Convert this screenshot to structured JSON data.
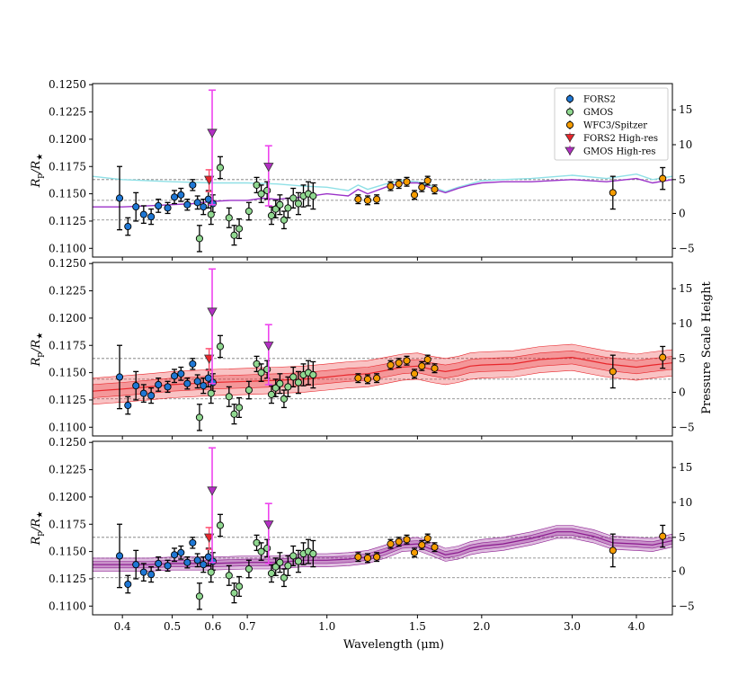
{
  "chart_data": {
    "type": "scatter",
    "x_label": "Wavelength (μm)",
    "x_scale": "log",
    "x_range": [
      0.35,
      4.7
    ],
    "x_ticks": [
      {
        "value": 0.4,
        "label": "0.4"
      },
      {
        "value": 0.5,
        "label": "0.5"
      },
      {
        "value": 0.6,
        "label": "0.6"
      },
      {
        "value": 0.7,
        "label": "0.7"
      },
      {
        "value": 1.0,
        "label": "1.0"
      },
      {
        "value": 1.5,
        "label": "1.5"
      },
      {
        "value": 2.0,
        "label": "2.0"
      },
      {
        "value": 3.0,
        "label": "3.0"
      },
      {
        "value": 4.0,
        "label": "4.0"
      }
    ],
    "y_label": "R_p/R_★",
    "y_range": [
      0.1092,
      0.1251
    ],
    "y_ticks": [
      "0.1100",
      "0.1125",
      "0.1150",
      "0.1175",
      "0.1200",
      "0.1225",
      "0.1250"
    ],
    "y2_label": "Pressure Scale Height",
    "y2_ticks": [
      {
        "value": -5,
        "label": "−5",
        "y": 0.11
      },
      {
        "value": 0,
        "label": "0",
        "y": 0.1132
      },
      {
        "value": 5,
        "label": "5",
        "y": 0.1163
      },
      {
        "value": 10,
        "label": "10",
        "y": 0.1195
      },
      {
        "value": 15,
        "label": "15",
        "y": 0.1227
      }
    ],
    "reference_lines": [
      0.1163,
      0.1144,
      0.1126
    ],
    "legend": {
      "position": "top-right",
      "entries": [
        {
          "label": "FORS2",
          "color": "#1f77d4",
          "marker": "circle"
        },
        {
          "label": "GMOS",
          "color": "#90d890",
          "marker": "circle"
        },
        {
          "label": "WFC3/Spitzer",
          "color": "#f59c00",
          "marker": "circle"
        },
        {
          "label": "FORS2 High-res",
          "color": "#e8262b",
          "marker": "triangle-down"
        },
        {
          "label": "GMOS High-res",
          "color": "#b32fc4",
          "marker": "triangle-down"
        }
      ]
    },
    "series": [
      {
        "name": "FORS2",
        "color": "#1f77d4",
        "points": [
          {
            "x": 0.395,
            "y": 0.1146,
            "err": 0.0029
          },
          {
            "x": 0.41,
            "y": 0.112,
            "err": 0.0008
          },
          {
            "x": 0.425,
            "y": 0.1138,
            "err": 0.0013
          },
          {
            "x": 0.44,
            "y": 0.1131,
            "err": 0.0008
          },
          {
            "x": 0.455,
            "y": 0.1129,
            "err": 0.0007
          },
          {
            "x": 0.47,
            "y": 0.1139,
            "err": 0.0006
          },
          {
            "x": 0.49,
            "y": 0.1137,
            "err": 0.0005
          },
          {
            "x": 0.505,
            "y": 0.1147,
            "err": 0.0006
          },
          {
            "x": 0.52,
            "y": 0.1149,
            "err": 0.0006
          },
          {
            "x": 0.535,
            "y": 0.114,
            "err": 0.0005
          },
          {
            "x": 0.548,
            "y": 0.1158,
            "err": 0.0005
          },
          {
            "x": 0.56,
            "y": 0.1142,
            "err": 0.0006
          },
          {
            "x": 0.575,
            "y": 0.1138,
            "err": 0.0007
          },
          {
            "x": 0.588,
            "y": 0.1145,
            "err": 0.0008
          },
          {
            "x": 0.6,
            "y": 0.1141,
            "err": 0.0008
          }
        ]
      },
      {
        "name": "GMOS",
        "color": "#90d890",
        "points": [
          {
            "x": 0.565,
            "y": 0.1109,
            "err": 0.0012
          },
          {
            "x": 0.595,
            "y": 0.1131,
            "err": 0.0009
          },
          {
            "x": 0.62,
            "y": 0.1174,
            "err": 0.001
          },
          {
            "x": 0.645,
            "y": 0.1128,
            "err": 0.0009
          },
          {
            "x": 0.66,
            "y": 0.1112,
            "err": 0.0009
          },
          {
            "x": 0.675,
            "y": 0.1118,
            "err": 0.0009
          },
          {
            "x": 0.705,
            "y": 0.1134,
            "err": 0.0008
          },
          {
            "x": 0.73,
            "y": 0.1158,
            "err": 0.0007
          },
          {
            "x": 0.745,
            "y": 0.115,
            "err": 0.0008
          },
          {
            "x": 0.765,
            "y": 0.1153,
            "err": 0.0008
          },
          {
            "x": 0.78,
            "y": 0.113,
            "err": 0.0008
          },
          {
            "x": 0.795,
            "y": 0.1136,
            "err": 0.0008
          },
          {
            "x": 0.81,
            "y": 0.114,
            "err": 0.0009
          },
          {
            "x": 0.825,
            "y": 0.1126,
            "err": 0.0008
          },
          {
            "x": 0.84,
            "y": 0.1137,
            "err": 0.0009
          },
          {
            "x": 0.86,
            "y": 0.1146,
            "err": 0.0009
          },
          {
            "x": 0.88,
            "y": 0.1141,
            "err": 0.001
          },
          {
            "x": 0.9,
            "y": 0.1148,
            "err": 0.001
          },
          {
            "x": 0.92,
            "y": 0.115,
            "err": 0.0011
          },
          {
            "x": 0.94,
            "y": 0.1148,
            "err": 0.0012
          }
        ]
      },
      {
        "name": "WFC3/Spitzer",
        "color": "#f59c00",
        "points": [
          {
            "x": 1.15,
            "y": 0.1145,
            "err": 0.0004
          },
          {
            "x": 1.2,
            "y": 0.1144,
            "err": 0.0004
          },
          {
            "x": 1.25,
            "y": 0.1145,
            "err": 0.0004
          },
          {
            "x": 1.33,
            "y": 0.1157,
            "err": 0.0004
          },
          {
            "x": 1.38,
            "y": 0.1159,
            "err": 0.0004
          },
          {
            "x": 1.43,
            "y": 0.1161,
            "err": 0.0004
          },
          {
            "x": 1.48,
            "y": 0.1149,
            "err": 0.0004
          },
          {
            "x": 1.53,
            "y": 0.1156,
            "err": 0.0004
          },
          {
            "x": 1.57,
            "y": 0.1162,
            "err": 0.0004
          },
          {
            "x": 1.62,
            "y": 0.1154,
            "err": 0.0004
          },
          {
            "x": 3.6,
            "y": 0.1151,
            "err": 0.0015
          },
          {
            "x": 4.5,
            "y": 0.1164,
            "err": 0.001
          }
        ]
      },
      {
        "name": "FORS2 High-res",
        "color": "#e8262b",
        "points": [
          {
            "x": 0.59,
            "y": 0.1162,
            "err_up": 0.001,
            "err_down": 0.001
          }
        ]
      },
      {
        "name": "GMOS High-res",
        "color": "#b32fc4",
        "points": [
          {
            "x": 0.598,
            "y": 0.1205,
            "err_up": 0.004,
            "err_down": 0.0065
          },
          {
            "x": 0.77,
            "y": 0.1174,
            "err_up": 0.002,
            "err_down": 0.0035
          }
        ]
      }
    ],
    "models": {
      "top": [
        {
          "color": "#8fe0e6",
          "points": [
            [
              0.35,
              0.1166
            ],
            [
              0.4,
              0.1163
            ],
            [
              0.5,
              0.1161
            ],
            [
              0.6,
              0.116
            ],
            [
              0.7,
              0.116
            ],
            [
              0.8,
              0.1159
            ],
            [
              0.9,
              0.1157
            ],
            [
              1.0,
              0.1156
            ],
            [
              1.1,
              0.1153
            ],
            [
              1.15,
              0.1158
            ],
            [
              1.2,
              0.1154
            ],
            [
              1.3,
              0.1159
            ],
            [
              1.4,
              0.1162
            ],
            [
              1.5,
              0.1161
            ],
            [
              1.6,
              0.1157
            ],
            [
              1.7,
              0.1152
            ],
            [
              1.8,
              0.1156
            ],
            [
              1.9,
              0.1159
            ],
            [
              2.0,
              0.1162
            ],
            [
              2.2,
              0.1163
            ],
            [
              2.5,
              0.1164
            ],
            [
              3.0,
              0.1167
            ],
            [
              3.5,
              0.1164
            ],
            [
              4.0,
              0.1168
            ],
            [
              4.3,
              0.1163
            ],
            [
              4.7,
              0.1166
            ]
          ]
        },
        {
          "color": "#9b32c8",
          "points": [
            [
              0.35,
              0.1138
            ],
            [
              0.4,
              0.1138
            ],
            [
              0.45,
              0.1139
            ],
            [
              0.5,
              0.114
            ],
            [
              0.55,
              0.1141
            ],
            [
              0.6,
              0.1143
            ],
            [
              0.65,
              0.1144
            ],
            [
              0.7,
              0.1144
            ],
            [
              0.75,
              0.1146
            ],
            [
              0.8,
              0.1145
            ],
            [
              0.9,
              0.1147
            ],
            [
              1.0,
              0.115
            ],
            [
              1.1,
              0.1148
            ],
            [
              1.15,
              0.1154
            ],
            [
              1.2,
              0.115
            ],
            [
              1.3,
              0.1156
            ],
            [
              1.4,
              0.116
            ],
            [
              1.5,
              0.116
            ],
            [
              1.6,
              0.1155
            ],
            [
              1.7,
              0.1151
            ],
            [
              1.8,
              0.1155
            ],
            [
              1.9,
              0.1158
            ],
            [
              2.0,
              0.116
            ],
            [
              2.2,
              0.1161
            ],
            [
              2.5,
              0.1161
            ],
            [
              3.0,
              0.1163
            ],
            [
              3.5,
              0.1161
            ],
            [
              4.0,
              0.1164
            ],
            [
              4.3,
              0.116
            ],
            [
              4.7,
              0.1163
            ]
          ]
        }
      ],
      "middle": {
        "color": "#e8262b",
        "points": [
          [
            0.35,
            0.1133
          ],
          [
            0.4,
            0.1135
          ],
          [
            0.45,
            0.1137
          ],
          [
            0.5,
            0.1139
          ],
          [
            0.55,
            0.114
          ],
          [
            0.6,
            0.1141
          ],
          [
            0.7,
            0.1142
          ],
          [
            0.8,
            0.1143
          ],
          [
            0.9,
            0.1144
          ],
          [
            1.0,
            0.1146
          ],
          [
            1.1,
            0.1148
          ],
          [
            1.2,
            0.1149
          ],
          [
            1.3,
            0.1152
          ],
          [
            1.4,
            0.1155
          ],
          [
            1.5,
            0.1156
          ],
          [
            1.6,
            0.1153
          ],
          [
            1.7,
            0.1151
          ],
          [
            1.8,
            0.1153
          ],
          [
            1.9,
            0.1156
          ],
          [
            2.0,
            0.1157
          ],
          [
            2.3,
            0.1158
          ],
          [
            2.6,
            0.1162
          ],
          [
            3.0,
            0.1164
          ],
          [
            3.5,
            0.1158
          ],
          [
            4.0,
            0.1155
          ],
          [
            4.3,
            0.1157
          ],
          [
            4.7,
            0.1159
          ]
        ],
        "band": [
          0.0006,
          0.0012
        ]
      },
      "bottom": {
        "color": "#8b1a8f",
        "points": [
          [
            0.35,
            0.1138
          ],
          [
            0.4,
            0.1138
          ],
          [
            0.45,
            0.1138
          ],
          [
            0.5,
            0.1139
          ],
          [
            0.55,
            0.1139
          ],
          [
            0.6,
            0.1139
          ],
          [
            0.7,
            0.114
          ],
          [
            0.8,
            0.114
          ],
          [
            0.9,
            0.1142
          ],
          [
            1.0,
            0.1142
          ],
          [
            1.1,
            0.1143
          ],
          [
            1.2,
            0.1145
          ],
          [
            1.3,
            0.115
          ],
          [
            1.4,
            0.1156
          ],
          [
            1.5,
            0.1157
          ],
          [
            1.6,
            0.1152
          ],
          [
            1.7,
            0.1147
          ],
          [
            1.8,
            0.1149
          ],
          [
            1.9,
            0.1153
          ],
          [
            2.0,
            0.1155
          ],
          [
            2.2,
            0.1157
          ],
          [
            2.5,
            0.1162
          ],
          [
            2.8,
            0.1168
          ],
          [
            3.0,
            0.1168
          ],
          [
            3.3,
            0.1164
          ],
          [
            3.6,
            0.1158
          ],
          [
            4.0,
            0.1157
          ],
          [
            4.3,
            0.1156
          ],
          [
            4.7,
            0.116
          ]
        ],
        "band": [
          0.0003,
          0.0006
        ]
      }
    }
  }
}
